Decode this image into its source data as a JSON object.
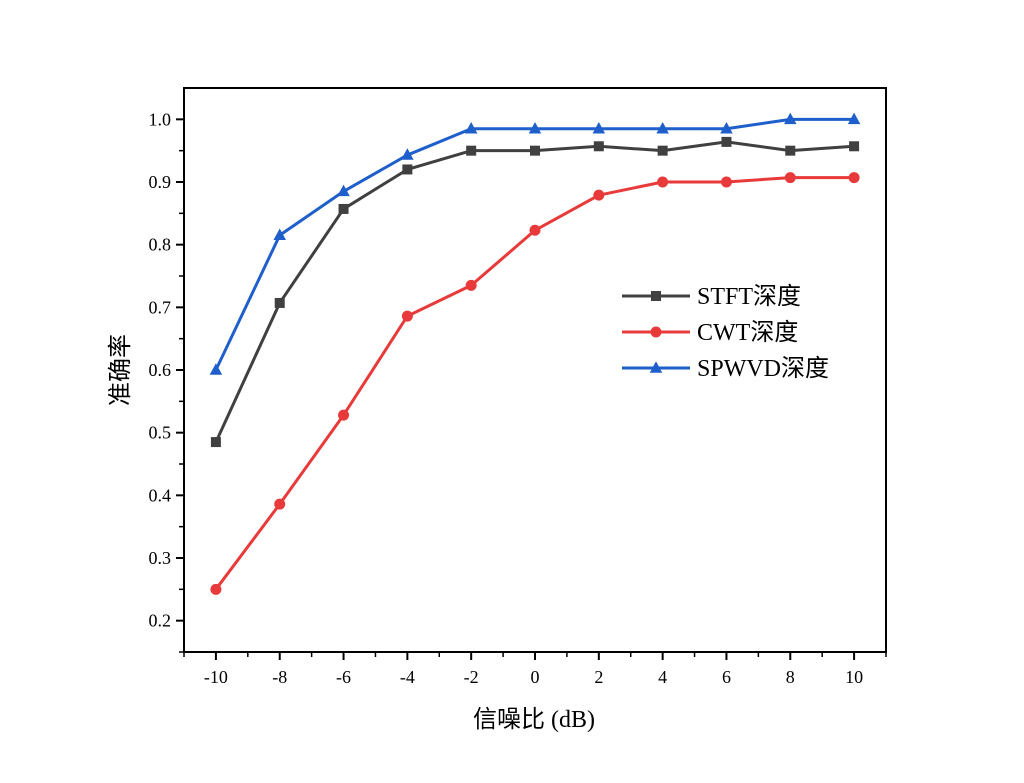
{
  "chart_data": {
    "type": "line",
    "xlabel": "信噪比 (dB)",
    "ylabel": "准确率",
    "xlim": [
      -11,
      11
    ],
    "ylim": [
      0.15,
      1.05
    ],
    "x": [
      -10,
      -8,
      -6,
      -4,
      -2,
      0,
      2,
      4,
      6,
      8,
      10
    ],
    "x_ticks": [
      "-10",
      "-8",
      "-6",
      "-4",
      "-2",
      "0",
      "2",
      "4",
      "6",
      "8",
      "10"
    ],
    "y_ticks": [
      "0.2",
      "0.3",
      "0.4",
      "0.5",
      "0.6",
      "0.7",
      "0.8",
      "0.9",
      "1.0"
    ],
    "grid": false,
    "legend_position": "right",
    "series": [
      {
        "name": "STFT深度",
        "color": "#404040",
        "marker": "square",
        "values": [
          0.485,
          0.707,
          0.857,
          0.92,
          0.95,
          0.95,
          0.957,
          0.95,
          0.964,
          0.95,
          0.957
        ]
      },
      {
        "name": "CWT深度",
        "color": "#e83a3a",
        "marker": "circle",
        "values": [
          0.25,
          0.386,
          0.528,
          0.686,
          0.735,
          0.823,
          0.879,
          0.9,
          0.9,
          0.907,
          0.907
        ]
      },
      {
        "name": "SPWVD深度",
        "color": "#1f5fcc",
        "marker": "triangle",
        "values": [
          0.6,
          0.815,
          0.885,
          0.943,
          0.985,
          0.985,
          0.985,
          0.985,
          0.985,
          1.0,
          1.0
        ]
      }
    ]
  }
}
